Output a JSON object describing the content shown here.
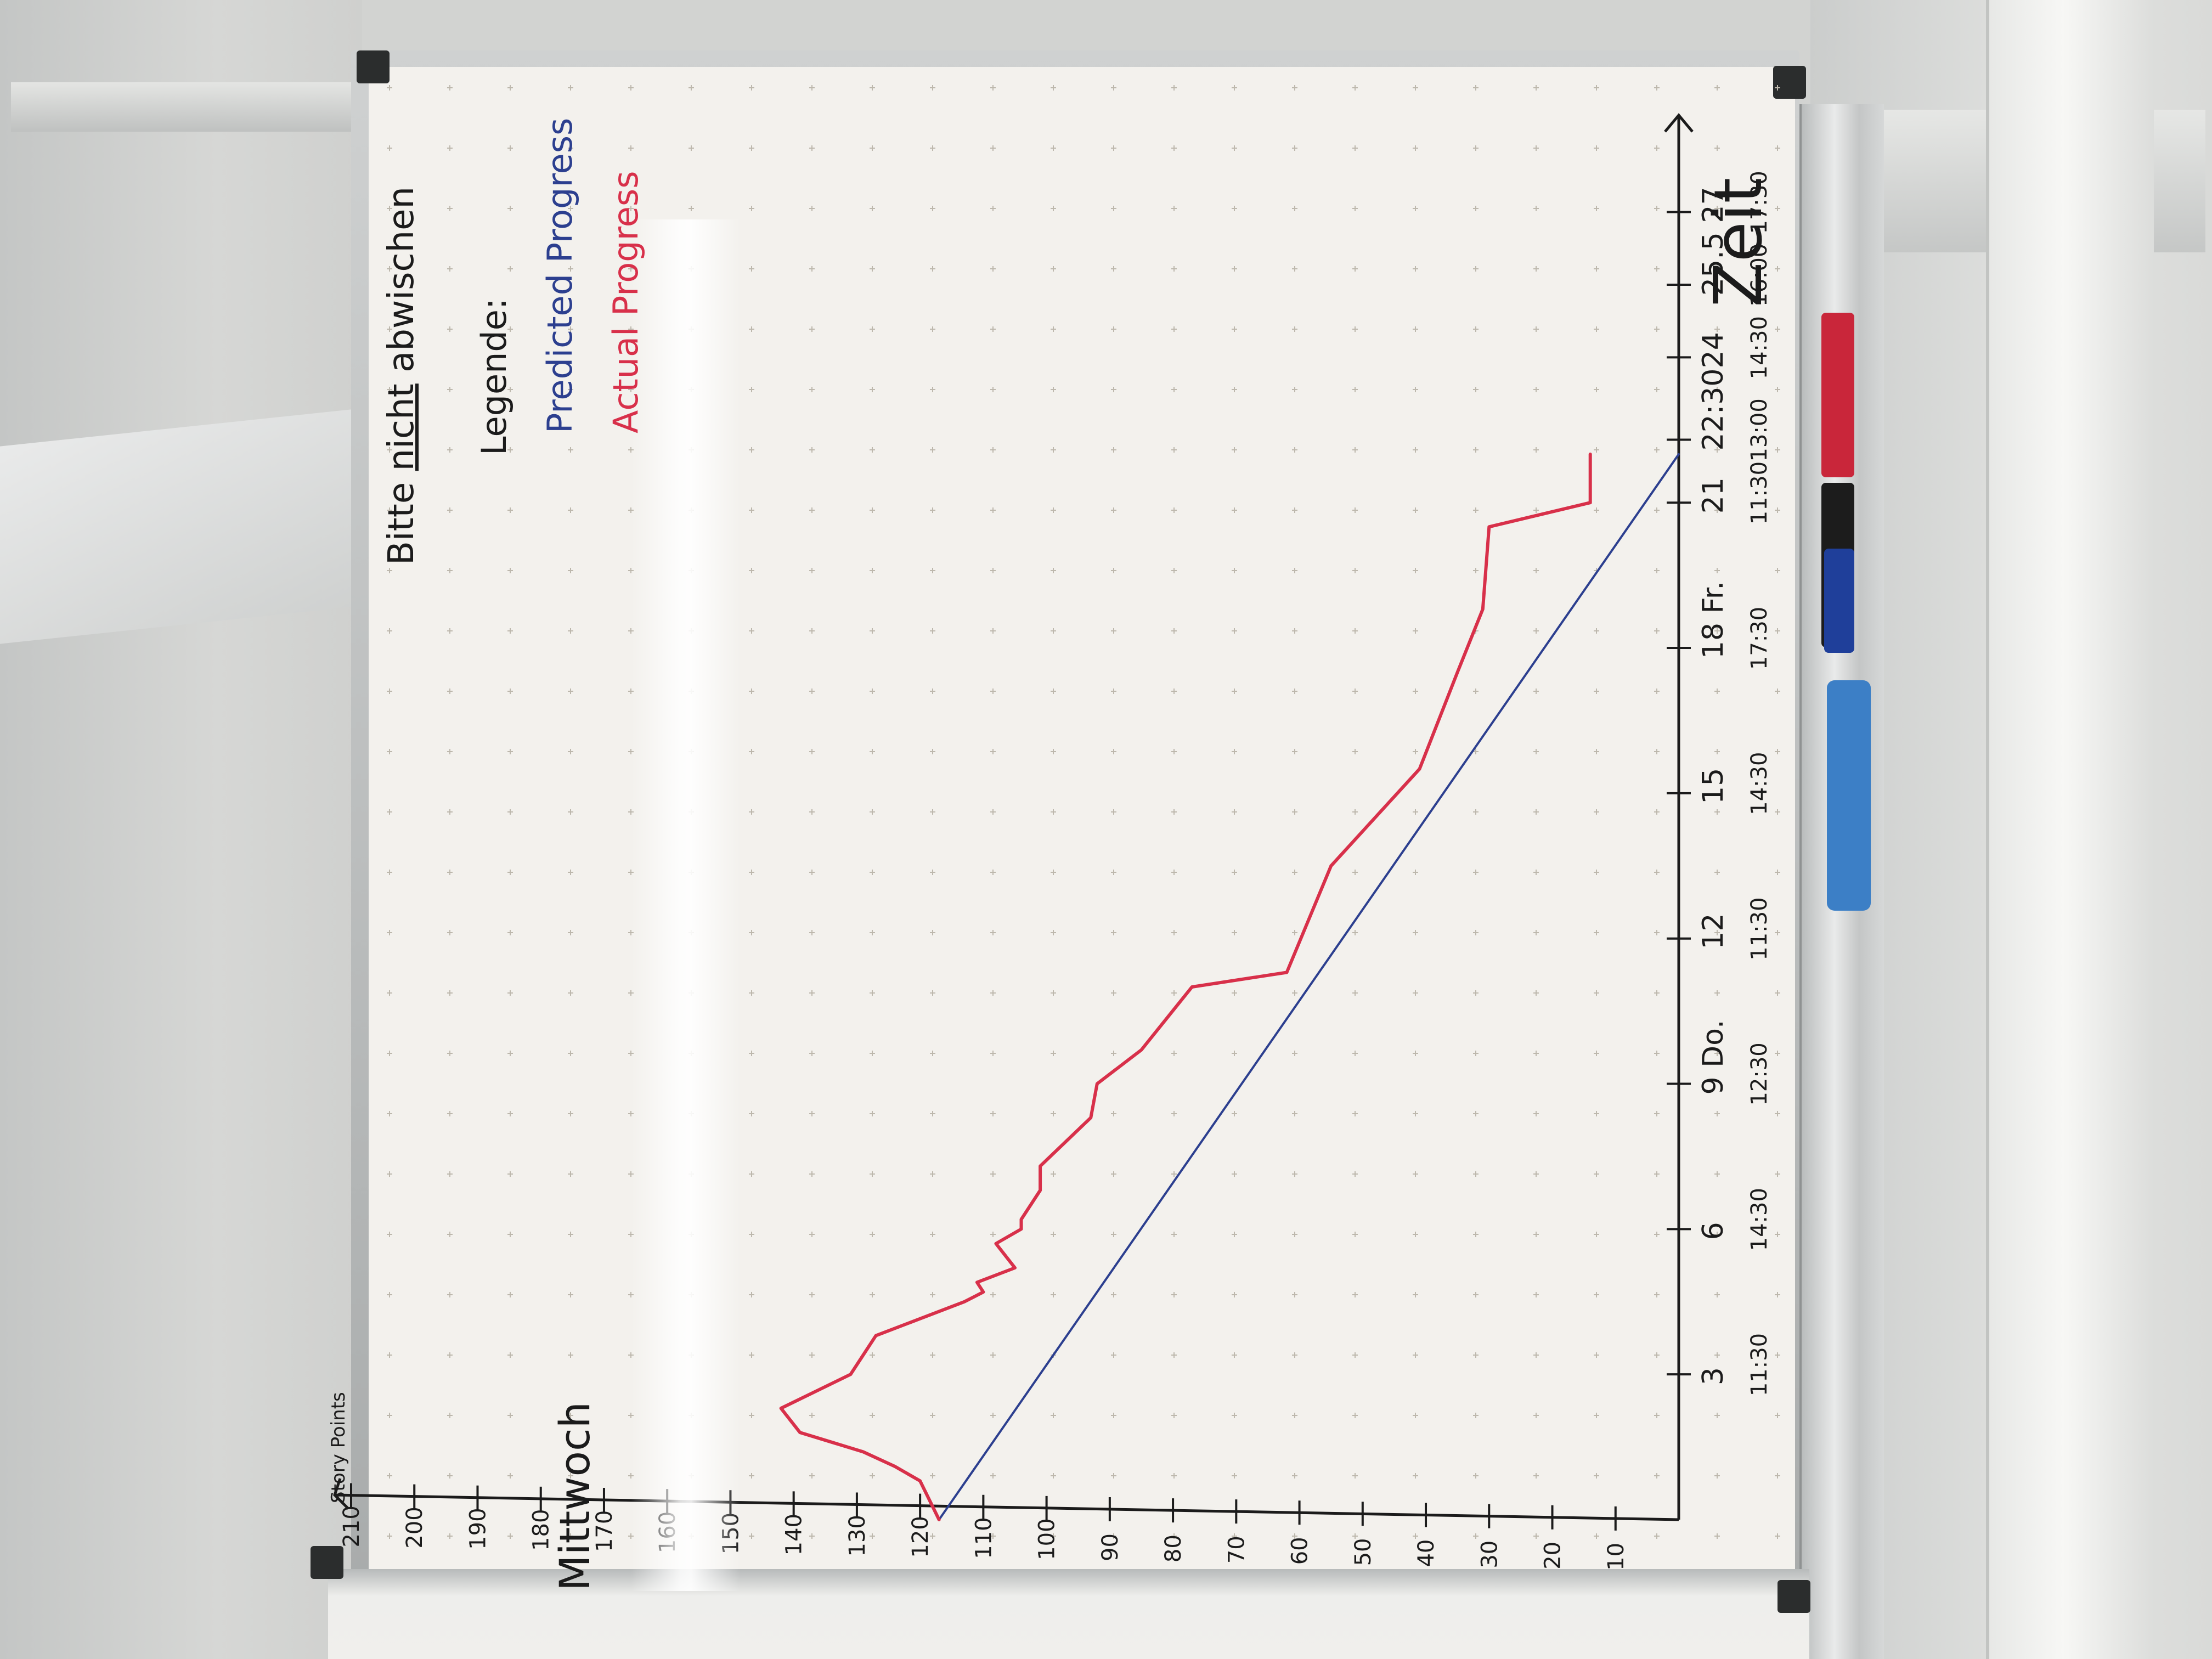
{
  "scene": {
    "description": "Photo of a whiteboard with a hand-drawn burndown chart, rotated 90 degrees"
  },
  "board": {
    "header_note": [
      "Bitte",
      "nicht",
      "abwischen"
    ],
    "legend": {
      "title": "Legende:",
      "entries": [
        {
          "label": "Predicted Progress",
          "color": "#2c3f8f"
        },
        {
          "label": "Actual Progress",
          "color": "#d8304a"
        }
      ]
    },
    "y_axis_label": "Story Points",
    "x_axis_label": "Zeit",
    "x_start_label": "Mittwoch",
    "y_ticks": [
      "210",
      "200",
      "190",
      "180",
      "170",
      "160",
      "150",
      "140",
      "130",
      "120",
      "110",
      "100",
      "90",
      "80",
      "70",
      "60",
      "50",
      "40",
      "30",
      "20",
      "10"
    ],
    "x_ticks": [
      {
        "day": "3",
        "time": "11:30"
      },
      {
        "day": "6",
        "time": "14:30"
      },
      {
        "day": "9 Do.",
        "time": "12:30"
      },
      {
        "day": "12",
        "time": "11:30"
      },
      {
        "day": "15",
        "time": "14:30"
      },
      {
        "day": "18 Fr.",
        "time": "17:30"
      },
      {
        "day": "21",
        "time": "11:30"
      },
      {
        "day": "22:30",
        "time": "13:00"
      },
      {
        "day": "24",
        "time": "14:30"
      },
      {
        "day": "25.5",
        "time": "16:00"
      },
      {
        "day": "27",
        "time": "17:30"
      }
    ]
  },
  "chart_data": {
    "type": "line",
    "title": "",
    "xlabel": "Zeit",
    "ylabel": "Story Points",
    "ylim": [
      0,
      210
    ],
    "xlim": [
      0,
      29
    ],
    "series": [
      {
        "name": "Predicted Progress",
        "color": "#2c3f8f",
        "x": [
          0,
          22
        ],
        "y": [
          117,
          0
        ]
      },
      {
        "name": "Actual Progress",
        "color": "#d8304a",
        "x": [
          0,
          0.8,
          1.1,
          1.4,
          1.8,
          2.3,
          3.0,
          3.8,
          4.5,
          4.7,
          4.9,
          5.2,
          5.7,
          6.0,
          6.2,
          6.8,
          7.3,
          8.3,
          9.0,
          9.7,
          11.0,
          11.3,
          13.5,
          15.5,
          17.5,
          18.8,
          20.5,
          21.0,
          21.3,
          22.0
        ],
        "y": [
          117,
          120,
          124,
          129,
          139,
          142,
          131,
          127,
          113,
          110,
          111,
          105,
          108,
          104,
          104,
          101,
          101,
          93,
          92,
          85,
          77,
          62,
          55,
          41,
          35,
          31,
          30,
          14,
          14,
          14
        ]
      }
    ]
  },
  "tray": {
    "markers": [
      {
        "color": "#c9263a",
        "label": "red-marker"
      },
      {
        "color": "#1c1c1c",
        "label": "black-marker"
      },
      {
        "color": "#1f3f9a",
        "label": "blue-marker"
      }
    ],
    "eraser_color": "#3c7fc6"
  }
}
